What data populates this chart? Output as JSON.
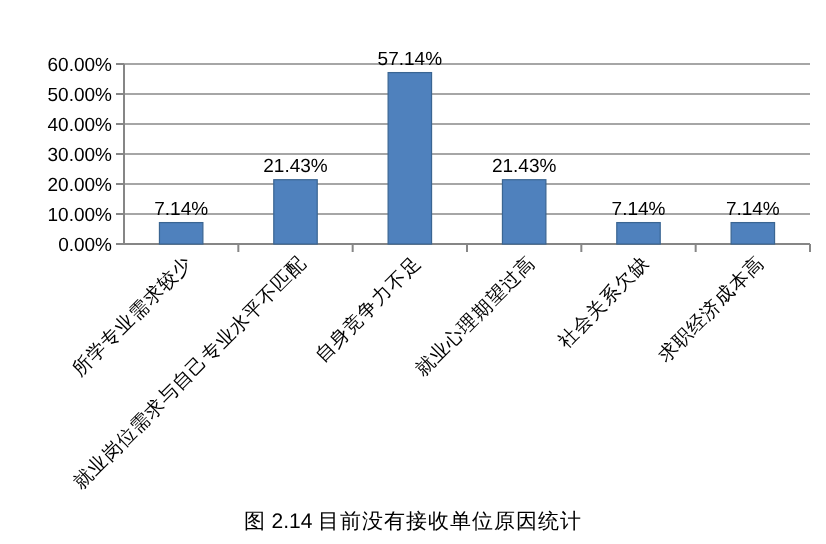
{
  "chart_data": {
    "type": "bar",
    "title": "图 2.14 目前没有接收单位原因统计",
    "categories": [
      "所学专业需求较少",
      "就业岗位需求与自己专业水平不匹配",
      "自身竞争力不足",
      "就业心理期望过高",
      "社会关系欠缺",
      "求职经济成本高"
    ],
    "values": [
      7.14,
      21.43,
      57.14,
      21.43,
      7.14,
      7.14
    ],
    "value_labels": [
      "7.14%",
      "21.43%",
      "57.14%",
      "21.43%",
      "7.14%",
      "7.14%"
    ],
    "color": "#4f81bd",
    "ylim": [
      0,
      60
    ],
    "yticks": [
      {
        "value": 0,
        "label": "0.00%"
      },
      {
        "value": 10,
        "label": "10.00%"
      },
      {
        "value": 20,
        "label": "20.00%"
      },
      {
        "value": 30,
        "label": "30.00%"
      },
      {
        "value": 40,
        "label": "40.00%"
      },
      {
        "value": 50,
        "label": "50.00%"
      },
      {
        "value": 60,
        "label": "60.00%"
      }
    ],
    "grid": "y"
  }
}
